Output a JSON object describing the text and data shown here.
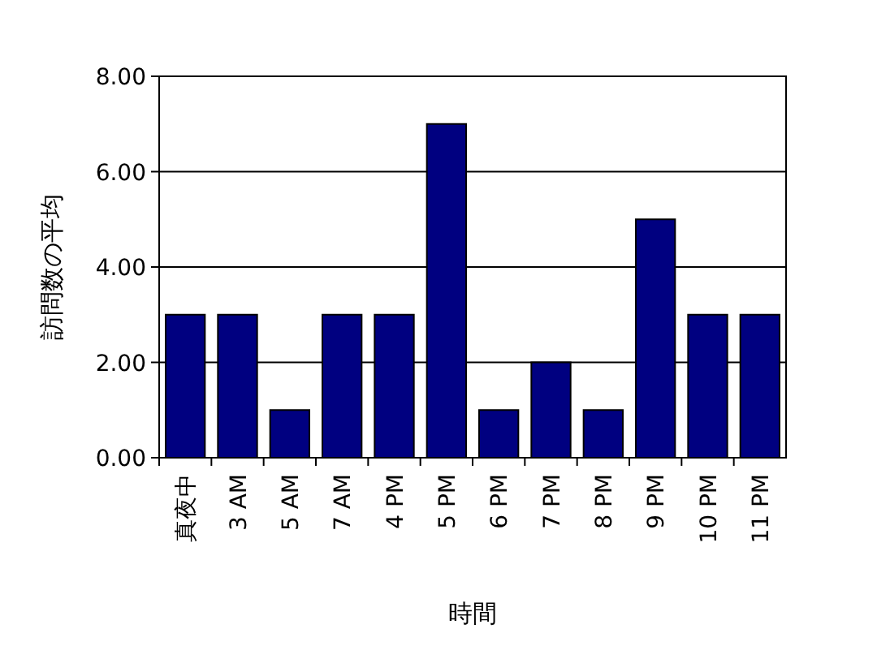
{
  "chart_data": {
    "type": "bar",
    "xlabel": "時間",
    "ylabel": "訪問数の平均",
    "categories": [
      "真夜中",
      "3 AM",
      "5 AM",
      "7 AM",
      "4 PM",
      "5 PM",
      "6 PM",
      "7 PM",
      "8 PM",
      "9 PM",
      "10 PM",
      "11 PM"
    ],
    "values": [
      3,
      3,
      1,
      3,
      3,
      7,
      1,
      2,
      1,
      5,
      3,
      3
    ],
    "color": "#000080",
    "ylim": [
      0,
      8
    ],
    "yticks": [
      {
        "value": 0,
        "label": "0.00"
      },
      {
        "value": 2,
        "label": "2.00"
      },
      {
        "value": 4,
        "label": "4.00"
      },
      {
        "value": 6,
        "label": "6.00"
      },
      {
        "value": 8,
        "label": "8.00"
      }
    ],
    "grid": "y"
  }
}
